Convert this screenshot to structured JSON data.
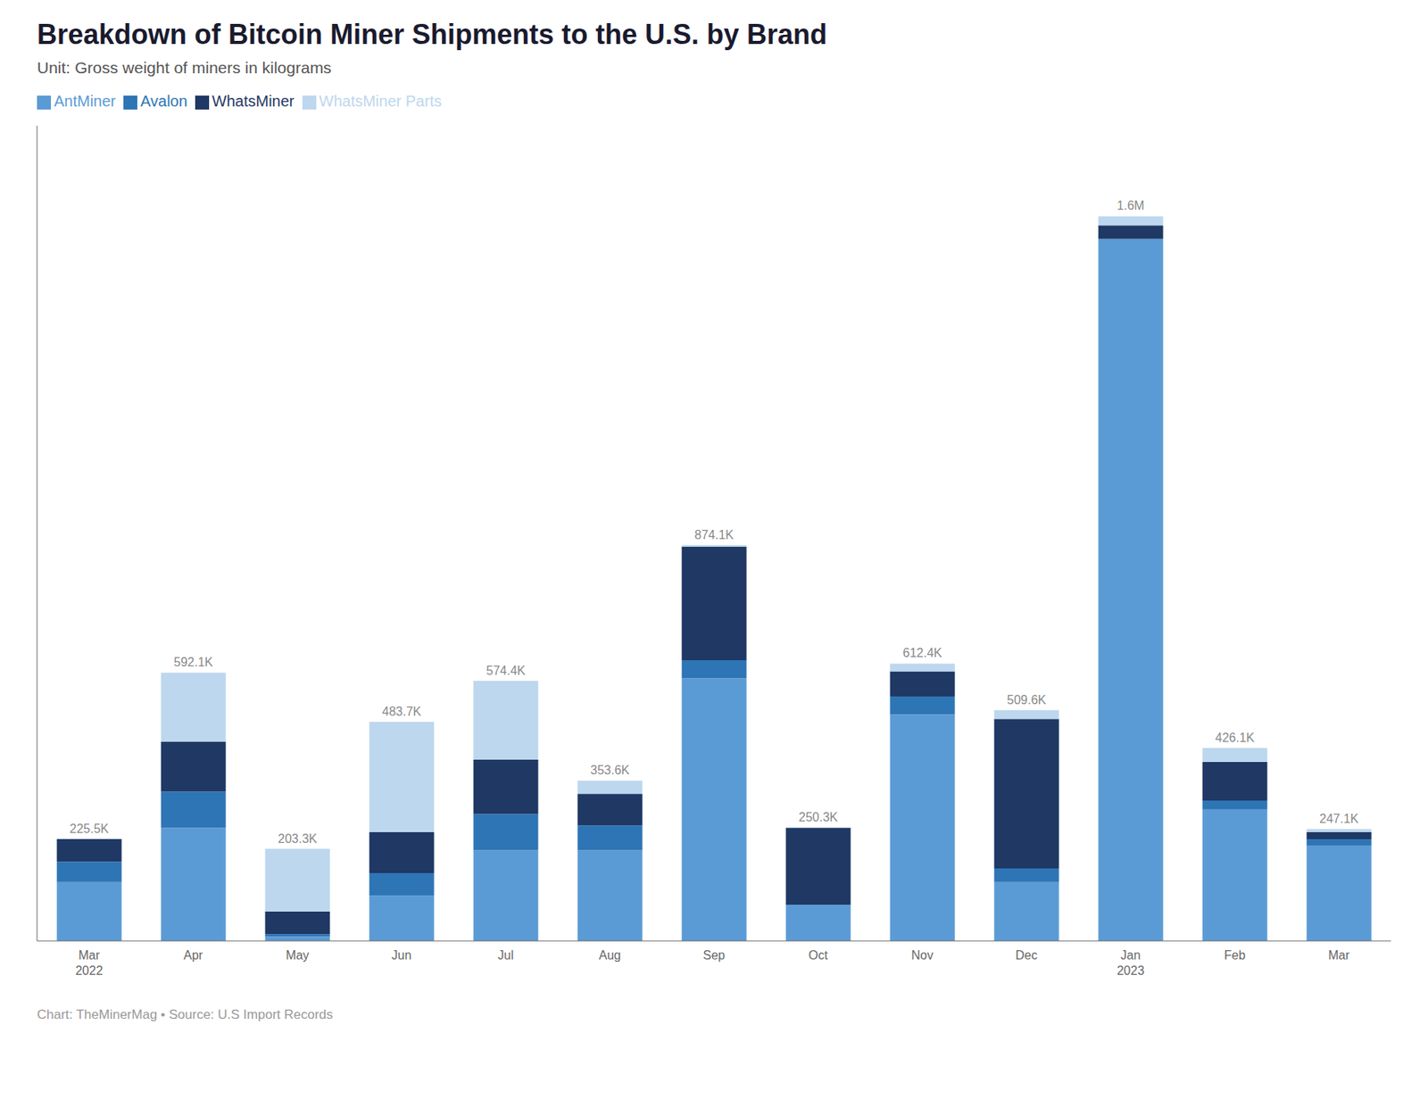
{
  "chart_data": {
    "type": "bar",
    "title": "Breakdown of Bitcoin Miner Shipments to the U.S. by Brand",
    "subtitle": "Unit: Gross weight of miners in kilograms",
    "footer": "Chart: TheMinerMag • Source: U.S Import Records",
    "categories": [
      "Mar\n2022",
      "Apr",
      "May",
      "Jun",
      "Jul",
      "Aug",
      "Sep",
      "Oct",
      "Nov",
      "Dec",
      "Jan\n2023",
      "Feb",
      "Mar"
    ],
    "series": [
      {
        "name": "AntMiner",
        "color": "#5b9bd5",
        "values": [
          130000,
          250000,
          10000,
          100000,
          200000,
          200000,
          580000,
          80000,
          500000,
          130000,
          1550000,
          290000,
          210000
        ]
      },
      {
        "name": "Avalon",
        "color": "#2e75b6",
        "values": [
          45000,
          80000,
          5000,
          50000,
          80000,
          55000,
          40000,
          0,
          40000,
          30000,
          0,
          20000,
          15000
        ]
      },
      {
        "name": "WhatsMiner",
        "color": "#1f3864",
        "values": [
          50000,
          110000,
          50000,
          90000,
          120000,
          70000,
          250000,
          170000,
          55000,
          330000,
          30000,
          85000,
          15000
        ]
      },
      {
        "name": "WhatsMiner Parts",
        "color": "#bdd7ee",
        "values": [
          500,
          152100,
          138300,
          243700,
          174400,
          28600,
          4100,
          300,
          17400,
          19600,
          20000,
          31100,
          7100
        ]
      }
    ],
    "totals": [
      225500,
      592100,
      203300,
      483700,
      574400,
      353600,
      874100,
      250300,
      612400,
      509600,
      1600000,
      426100,
      247100
    ],
    "totals_labels": [
      "225.5K",
      "592.1K",
      "203.3K",
      "483.7K",
      "574.4K",
      "353.6K",
      "874.1K",
      "250.3K",
      "612.4K",
      "509.6K",
      "1.6M",
      "426.1K",
      "247.1K"
    ],
    "ylim": [
      0,
      1800000
    ],
    "stacked": true,
    "grid": false,
    "legend": "top",
    "tick_labels": "x"
  }
}
